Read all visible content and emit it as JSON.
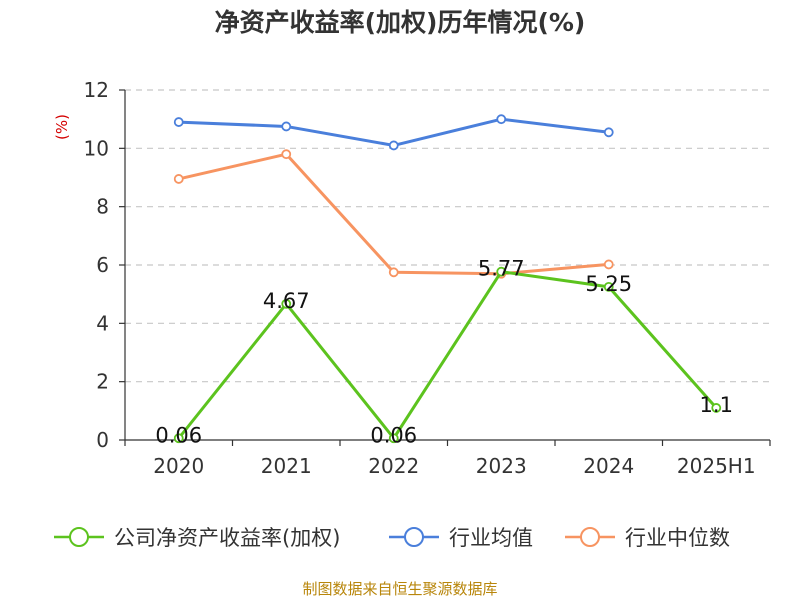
{
  "chart_data": {
    "type": "line",
    "title": "净资产收益率(加权)历年情况(%)",
    "ylabel": "(%)",
    "xlabel": "",
    "ylim": [
      0,
      12
    ],
    "yticks": [
      0,
      2,
      4,
      6,
      8,
      10,
      12
    ],
    "grid": true,
    "legend_position": "bottom",
    "categories": [
      "2020",
      "2021",
      "2022",
      "2023",
      "2024",
      "2025H1"
    ],
    "series": [
      {
        "name": "公司净资产收益率(加权)",
        "color": "#5cc31e",
        "values": [
          0.06,
          4.67,
          0.06,
          5.77,
          5.25,
          1.1
        ],
        "labels": [
          "0.06",
          "4.67",
          "0.06",
          "5.77",
          "5.25",
          "1.1"
        ]
      },
      {
        "name": "行业均值",
        "color": "#4a7fdb",
        "values": [
          10.9,
          10.75,
          10.1,
          11.0,
          10.55,
          null
        ]
      },
      {
        "name": "行业中位数",
        "color": "#f79461",
        "values": [
          8.95,
          9.8,
          5.75,
          5.7,
          6.02,
          null
        ]
      }
    ]
  },
  "source": "制图数据来自恒生聚源数据库"
}
